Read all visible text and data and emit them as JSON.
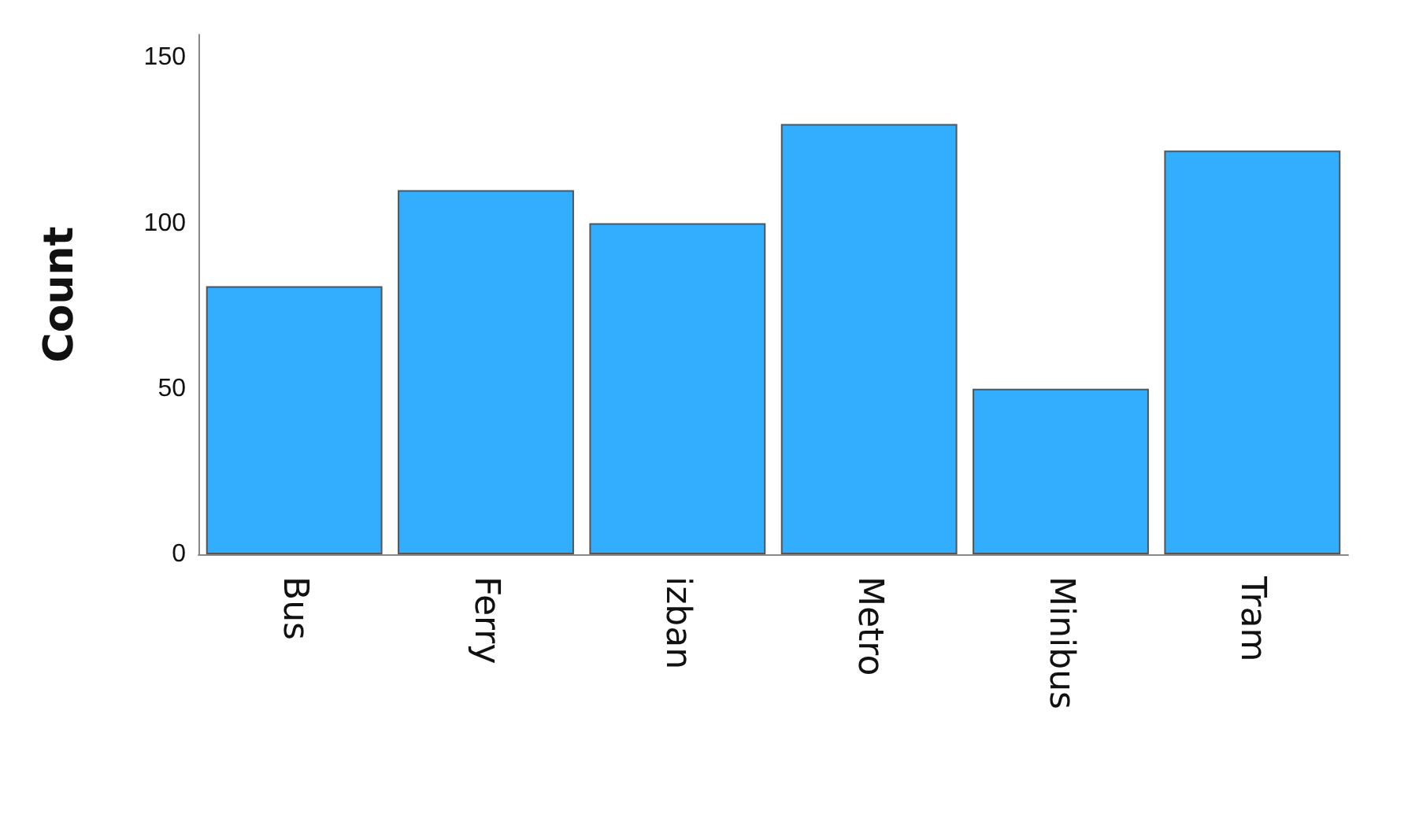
{
  "chart_data": {
    "type": "bar",
    "ylabel": "Count",
    "categories": [
      "Bus",
      "Ferry",
      "izban",
      "Metro",
      "Minibus",
      "Tram"
    ],
    "values": [
      81,
      110,
      100,
      130,
      50,
      122
    ],
    "color": "#33adfd",
    "ylim": [
      0,
      157
    ],
    "yticks": [
      0,
      50,
      100,
      150
    ],
    "grid": false
  }
}
